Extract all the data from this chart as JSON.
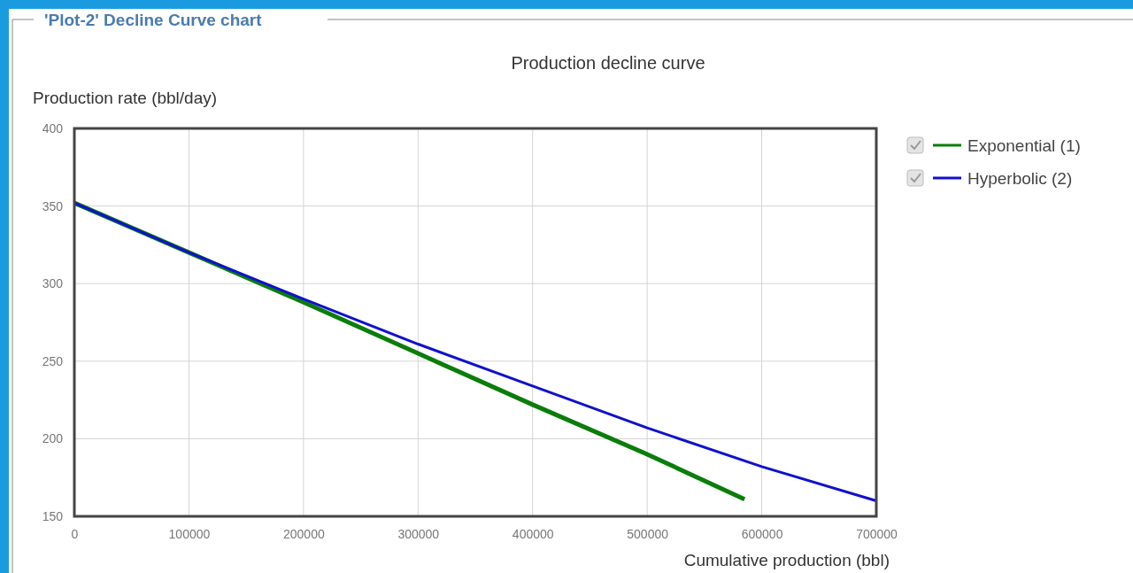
{
  "chart_data": {
    "type": "line",
    "title": "'Plot-2' Decline Curve chart",
    "subtitle": "Production decline curve",
    "xlabel": "Cumulative production (bbl)",
    "ylabel": "Production rate (bbl/day)",
    "xlim": [
      0,
      700000
    ],
    "xticks": [
      0,
      100000,
      200000,
      300000,
      400000,
      500000,
      600000,
      700000
    ],
    "ylim": [
      150,
      400
    ],
    "yticks": [
      150,
      200,
      250,
      300,
      350,
      400
    ],
    "grid": true,
    "legend": "right",
    "marker": "none",
    "line_style": "solid",
    "series": [
      {
        "name": "Exponential (1)",
        "color": "#0a7d0a",
        "x": [
          0,
          100000,
          200000,
          300000,
          400000,
          500000,
          585000
        ],
        "values": [
          352,
          320,
          288,
          255,
          222,
          190,
          161
        ]
      },
      {
        "name": "Hyperbolic (2)",
        "color": "#1010d0",
        "x": [
          0,
          100000,
          200000,
          300000,
          400000,
          500000,
          600000,
          700000
        ],
        "values": [
          352,
          320,
          290,
          261,
          234,
          207,
          182,
          160
        ]
      }
    ]
  }
}
